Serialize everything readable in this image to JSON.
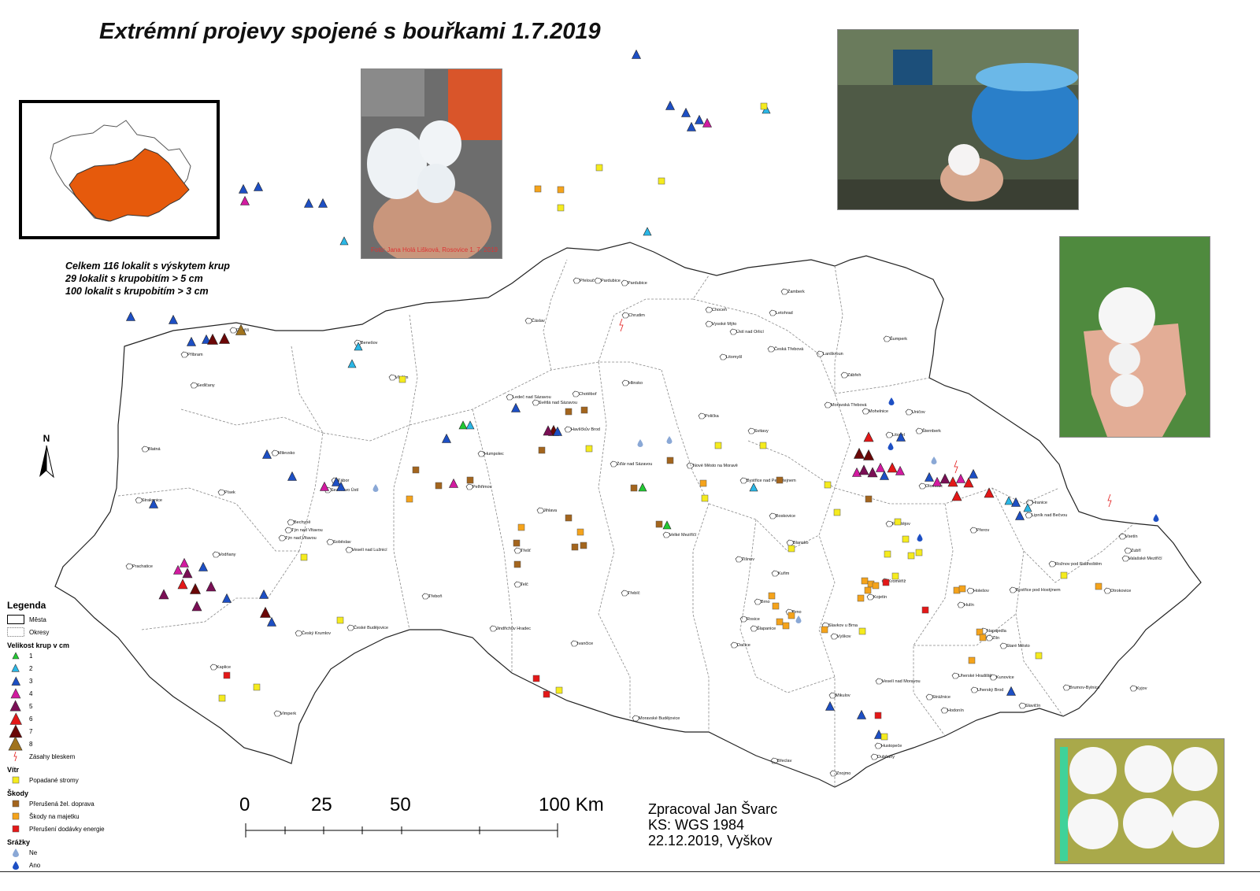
{
  "title": "Extrémní projevy spojené s bouřkami 1.7.2019",
  "stats": [
    "Celkem 116 lokalit s výskytem krup",
    "29 lokalit s krupobitím > 5 cm",
    "100 lokalit s krupobitím > 3 cm"
  ],
  "photo_credit": "Foto: Jana Holá Lišková, Rosovice 1. 7. 2019",
  "north_label": "N",
  "author": {
    "line1": "Zpracoval Jan Švarc",
    "line2": "KS: WGS 1984",
    "line3": "22.12.2019, Vyškov"
  },
  "scale": {
    "labels": [
      "0",
      "25",
      "50",
      "100 Km"
    ]
  },
  "legend": {
    "title": "Legenda",
    "cities": "Města",
    "districts": "Okresy",
    "hail_title": "Velikost krup v cm",
    "hail": [
      {
        "label": "1",
        "color": "#22c933"
      },
      {
        "label": "2",
        "color": "#2bb7e6"
      },
      {
        "label": "3",
        "color": "#1d4fc4"
      },
      {
        "label": "4",
        "color": "#d21aa0"
      },
      {
        "label": "5",
        "color": "#7a0f55"
      },
      {
        "label": "6",
        "color": "#e31818"
      },
      {
        "label": "7",
        "color": "#6b0707"
      },
      {
        "label": "8",
        "color": "#a0731d"
      }
    ],
    "lightning": "Zásahy bleskem",
    "wind_title": "Vítr",
    "wind": {
      "label": "Popadané stromy",
      "color": "#f5eb1e"
    },
    "damage_title": "Škody",
    "damage": [
      {
        "label": "Přerušená žel. doprava",
        "color": "#a3651d"
      },
      {
        "label": "Škody na majetku",
        "color": "#f5a31b"
      },
      {
        "label": "Přerušení dodávky energie",
        "color": "#e31818"
      }
    ],
    "precip_title": "Srážky",
    "precip": [
      {
        "label": "Ne",
        "color": "#8aa8d6"
      },
      {
        "label": "Ano",
        "color": "#1d4fc4"
      }
    ]
  },
  "cities": [
    "Přelouč",
    "Pardubice",
    "Pardubice",
    "Žamberk",
    "Čáslav",
    "Chrudim",
    "Choceň",
    "Letohrad",
    "Vysoké Mýto",
    "Ústí nad Orlicí",
    "Česká Třebová",
    "Šumperk",
    "Litomyšl",
    "Lanškroun",
    "Zábřeh",
    "Hlinsko",
    "Chotěboř",
    "Ledeč nad Sázavou",
    "Světlá nad Sázavou",
    "Havlíčkův Brod",
    "Polička",
    "Svitavy",
    "Moravská Třebová",
    "Mohelnice",
    "Uničov",
    "Litovel",
    "Šternberk",
    "Olomouc",
    "Hranice",
    "Lipník nad Bečvou",
    "Přerov",
    "Prostějov",
    "Benešov",
    "Vlašim",
    "Příbram",
    "Dobříš",
    "Sedlčany",
    "Humpolec",
    "Pelhřimov",
    "Žďár nad Sázavou",
    "Nové Město na Moravě",
    "Bystřice nad Pernštejnem",
    "Boskovice",
    "Blatná",
    "Milevsko",
    "Tábor",
    "Sezimovo Ústí",
    "Písek",
    "Strakonice",
    "Bechyně",
    "Týn nad Vltavou",
    "Týn nad Vltavou",
    "Soběslav",
    "Veselí nad Lužnicí",
    "Vodňany",
    "Jihlava",
    "Velké Meziříčí",
    "Třešť",
    "Telč",
    "Třebíč",
    "Tišnov",
    "Blansko",
    "Kuřim",
    "Brno",
    "Brno",
    "Rosice",
    "Šlapanice",
    "Slavkov u Brna",
    "Vyškov",
    "Kojetín",
    "Kroměříž",
    "Hulín",
    "Holešov",
    "Bystřice pod Hostýnem",
    "Rožnov pod Radhoštěm",
    "Valašské Meziříčí",
    "Zubří",
    "Vsetín",
    "Otrokovice",
    "Napajedla",
    "Zlín",
    "Staré Město",
    "Uherské Hradiště",
    "Kunovice",
    "Uherský Brod",
    "Slavičín",
    "Brumov-Bylnice",
    "Kyjov",
    "Veselí nad Moravou",
    "Strážnice",
    "Hodonín",
    "Dubňany",
    "Hustopeče",
    "Mikulov",
    "Břeclav",
    "Znojmo",
    "Moravské Budějovice",
    "Ivančice",
    "Dačice",
    "Jindřichův Hradec",
    "Třeboň",
    "České Budějovice",
    "Český Krumlov",
    "Kaplice",
    "Vimperk",
    "Prachatice"
  ]
}
